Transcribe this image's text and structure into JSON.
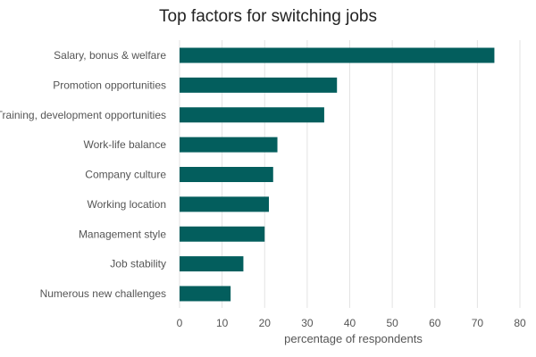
{
  "chart_data": {
    "type": "bar",
    "orientation": "horizontal",
    "title": "Top factors for switching jobs",
    "xlabel": "percentage of respondents",
    "ylabel": "",
    "categories": [
      "Salary, bonus & welfare",
      "Promotion opportunities",
      "Training, development opportunities",
      "Work-life balance",
      "Company culture",
      "Working location",
      "Management style",
      "Job stability",
      "Numerous new challenges"
    ],
    "values": [
      74,
      37,
      34,
      23,
      22,
      21,
      20,
      15,
      12
    ],
    "xlim": [
      0,
      80
    ],
    "xticks": [
      "0",
      "10",
      "20",
      "30",
      "40",
      "50",
      "60",
      "70",
      "80"
    ],
    "grid": "vertical",
    "bar_color": "#035e5d",
    "grid_color": "#e3e3e3"
  }
}
